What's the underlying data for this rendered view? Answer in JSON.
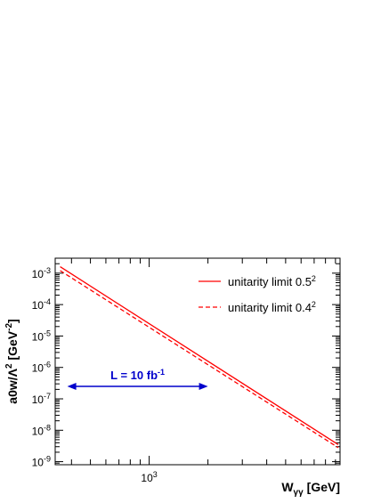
{
  "chart_data": {
    "type": "line",
    "xlabel": {
      "base": "W",
      "sub": "γγ",
      "unit": "[GeV]"
    },
    "ylabel": {
      "prefix": "a0w/Λ",
      "exp": "2",
      "unit_open": " [GeV",
      "unit_exp": "-2",
      "unit_close": "]"
    },
    "x_scale": "log",
    "y_scale": "log",
    "xlim": [
      330,
      9500
    ],
    "ylim": [
      8e-10,
      0.003
    ],
    "grid": false,
    "x_ticks": [
      {
        "value": 1000,
        "base": "10",
        "exp": "3"
      }
    ],
    "y_ticks": [
      {
        "value": 1e-09,
        "base": "10",
        "exp": "-9"
      },
      {
        "value": 1e-08,
        "base": "10",
        "exp": "-8"
      },
      {
        "value": 1e-07,
        "base": "10",
        "exp": "-7"
      },
      {
        "value": 1e-06,
        "base": "10",
        "exp": "-6"
      },
      {
        "value": 1e-05,
        "base": "10",
        "exp": "-5"
      },
      {
        "value": 0.0001,
        "base": "10",
        "exp": "-4"
      },
      {
        "value": 0.001,
        "base": "10",
        "exp": "-3"
      }
    ],
    "legend_position": "top-right",
    "series": [
      {
        "name": "unitarity limit 0.5",
        "name_exp": "2",
        "style": "solid",
        "color": "#ff0000",
        "x": [
          350,
          9300
        ],
        "y": [
          0.0016,
          3.5e-09
        ]
      },
      {
        "name": "unitarity limit 0.4",
        "name_exp": "2",
        "style": "dashed",
        "color": "#ff0000",
        "x": [
          350,
          9300
        ],
        "y": [
          0.0012,
          2.8e-09
        ]
      }
    ],
    "annotation": {
      "text": "L = 10 fb",
      "text_exp": "-1",
      "color": "#0000cc",
      "arrow_x": [
        350,
        2000
      ],
      "arrow_y": 2.5e-07
    }
  }
}
